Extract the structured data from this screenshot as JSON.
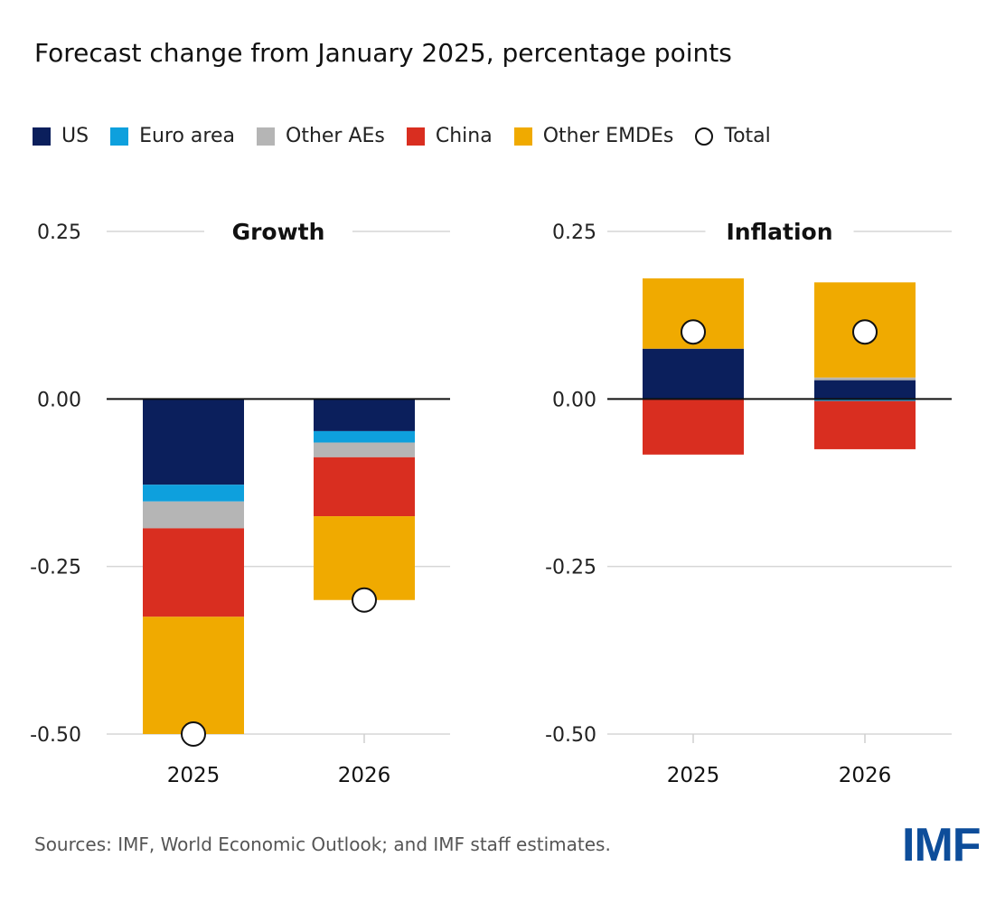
{
  "title": "Forecast change from January 2025, percentage points",
  "source": "Sources: IMF, World Economic Outlook; and IMF staff estimates.",
  "logo": "IMF",
  "legend": [
    {
      "name": "US",
      "color": "#0b1f5c",
      "marker": "square"
    },
    {
      "name": "Euro area",
      "color": "#0ea0dd",
      "marker": "square"
    },
    {
      "name": "Other AEs",
      "color": "#b5b5b5",
      "marker": "square"
    },
    {
      "name": "China",
      "color": "#d92e20",
      "marker": "square"
    },
    {
      "name": "Other EMDEs",
      "color": "#f0aa00",
      "marker": "square"
    },
    {
      "name": "Total",
      "color": "#ffffff",
      "marker": "circle"
    }
  ],
  "chart_data": [
    {
      "type": "bar",
      "stacked": true,
      "title": "Growth",
      "categories": [
        "2025",
        "2026"
      ],
      "ylim": [
        -0.5,
        0.25
      ],
      "yticks": [
        "0.25",
        "0.00",
        "-0.25",
        "-0.50"
      ],
      "series": [
        {
          "name": "US",
          "color": "#0b1f5c",
          "values": [
            -0.128,
            -0.048
          ]
        },
        {
          "name": "Euro area",
          "color": "#0ea0dd",
          "values": [
            -0.025,
            -0.017
          ]
        },
        {
          "name": "Other AEs",
          "color": "#b5b5b5",
          "values": [
            -0.04,
            -0.022
          ]
        },
        {
          "name": "China",
          "color": "#d92e20",
          "values": [
            -0.132,
            -0.088
          ]
        },
        {
          "name": "Other EMDEs",
          "color": "#f0aa00",
          "values": [
            -0.175,
            -0.125
          ]
        }
      ],
      "total": {
        "name": "Total",
        "values": [
          -0.5,
          -0.3
        ]
      }
    },
    {
      "type": "bar",
      "stacked": true,
      "title": "Inflation",
      "categories": [
        "2025",
        "2026"
      ],
      "ylim": [
        -0.5,
        0.25
      ],
      "yticks": [
        "0.25",
        "0.00",
        "-0.25",
        "-0.50"
      ],
      "series": [
        {
          "name": "US",
          "color": "#0b1f5c",
          "values": [
            0.075,
            0.028
          ]
        },
        {
          "name": "Euro area",
          "color": "#0ea0dd",
          "values": [
            0.0,
            -0.003
          ]
        },
        {
          "name": "Other AEs",
          "color": "#b5b5b5",
          "values": [
            0.0,
            0.004
          ]
        },
        {
          "name": "China",
          "color": "#d92e20",
          "values": [
            -0.083,
            -0.072
          ]
        },
        {
          "name": "Other EMDEs",
          "color": "#f0aa00",
          "values": [
            0.105,
            0.142
          ]
        }
      ],
      "total": {
        "name": "Total",
        "values": [
          0.1,
          0.1
        ]
      }
    }
  ]
}
